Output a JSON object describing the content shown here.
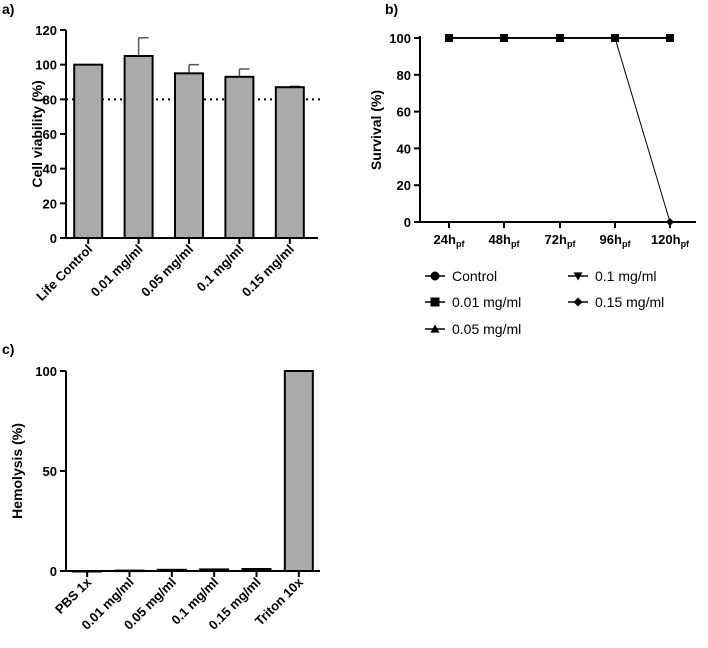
{
  "chart_data": [
    {
      "panel": "a)",
      "type": "bar",
      "ylabel": "Cell viability (%)",
      "xlabel": "",
      "categories": [
        "Life Control",
        "0.01 mg/ml",
        "0.05 mg/ml",
        "0.1 mg/ml",
        "0.15 mg/ml"
      ],
      "values": [
        100,
        105,
        95,
        93,
        87
      ],
      "error": [
        0,
        10.5,
        5,
        4.5,
        0.5
      ],
      "ylim": [
        0,
        120
      ],
      "yticks": [
        0,
        20,
        40,
        60,
        80,
        100,
        120
      ],
      "reference_line": 80,
      "bar_color": "#aaaaaa"
    },
    {
      "panel": "b)",
      "type": "line",
      "ylabel": "Survival (%)",
      "xlabel": "",
      "categories": [
        {
          "main": "24h",
          "sub": "pf"
        },
        {
          "main": "48h",
          "sub": "pf"
        },
        {
          "main": "72h",
          "sub": "pf"
        },
        {
          "main": "96h",
          "sub": "pf"
        },
        {
          "main": "120h",
          "sub": "pf"
        }
      ],
      "ylim": [
        0,
        100
      ],
      "yticks": [
        0,
        20,
        40,
        60,
        80,
        100
      ],
      "series": [
        {
          "name": "Control",
          "marker": "circle",
          "values": [
            100,
            100,
            100,
            100,
            100
          ]
        },
        {
          "name": "0.01 mg/ml",
          "marker": "square",
          "values": [
            100,
            100,
            100,
            100,
            100
          ]
        },
        {
          "name": "0.05 mg/ml",
          "marker": "triangle-up",
          "values": [
            100,
            100,
            100,
            100,
            100
          ]
        },
        {
          "name": "0.1 mg/ml",
          "marker": "triangle-down",
          "values": [
            100,
            100,
            100,
            100,
            100
          ]
        },
        {
          "name": "0.15 mg/ml",
          "marker": "diamond",
          "values": [
            100,
            100,
            100,
            100,
            0
          ]
        }
      ],
      "legend_position": "bottom"
    },
    {
      "panel": "c)",
      "type": "bar",
      "ylabel": "Hemolysis (%)",
      "xlabel": "",
      "categories": [
        "PBS 1x",
        "0.01 mg/ml",
        "0.05 mg/ml",
        "0.1 mg/ml",
        "0.15 mg/ml",
        "Triton 10x"
      ],
      "values": [
        0,
        0.2,
        0.6,
        0.8,
        1.0,
        100
      ],
      "ylim": [
        0,
        100
      ],
      "yticks": [
        0,
        50,
        100
      ],
      "bar_color": "#aaaaaa"
    }
  ]
}
